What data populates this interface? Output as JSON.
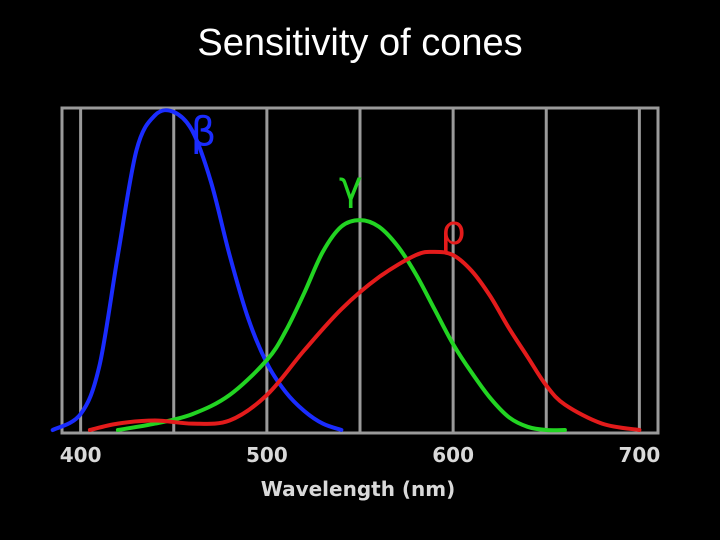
{
  "slide": {
    "title": "Sensitivity of cones"
  },
  "chart_data": {
    "type": "line",
    "title": "Sensitivity of cones",
    "xlabel": "Wavelength (nm)",
    "ylabel": "",
    "xlim": [
      390,
      710
    ],
    "ylim": [
      0,
      1.0
    ],
    "xticks": [
      400,
      500,
      600,
      700
    ],
    "vertical_gridlines": [
      400,
      450,
      500,
      550,
      600,
      650,
      700
    ],
    "grid": true,
    "legend": "none",
    "series": [
      {
        "name": "β",
        "color": "#1a2cff",
        "x": [
          385,
          400,
          410,
          420,
          430,
          440,
          450,
          460,
          470,
          480,
          490,
          500,
          510,
          520,
          530,
          540
        ],
        "y": [
          0.0,
          0.05,
          0.2,
          0.55,
          0.88,
          0.99,
          1.0,
          0.94,
          0.78,
          0.55,
          0.35,
          0.21,
          0.12,
          0.06,
          0.02,
          0.0
        ]
      },
      {
        "name": "γ",
        "color": "#22d422",
        "x": [
          420,
          440,
          460,
          480,
          500,
          510,
          520,
          530,
          540,
          550,
          560,
          570,
          580,
          590,
          600,
          610,
          620,
          630,
          640,
          650,
          660
        ],
        "y": [
          0.0,
          0.02,
          0.05,
          0.11,
          0.22,
          0.31,
          0.43,
          0.56,
          0.64,
          0.66,
          0.64,
          0.58,
          0.49,
          0.38,
          0.27,
          0.18,
          0.1,
          0.04,
          0.01,
          0.0,
          0.0
        ]
      },
      {
        "name": "ρ",
        "color": "#e31b1b",
        "x": [
          405,
          420,
          440,
          460,
          480,
          500,
          520,
          540,
          560,
          580,
          590,
          600,
          610,
          620,
          630,
          640,
          650,
          660,
          680,
          700
        ],
        "y": [
          0.0,
          0.02,
          0.03,
          0.02,
          0.03,
          0.11,
          0.25,
          0.38,
          0.48,
          0.55,
          0.56,
          0.55,
          0.5,
          0.42,
          0.32,
          0.23,
          0.14,
          0.08,
          0.02,
          0.0
        ]
      }
    ],
    "annotations": [
      {
        "text": "β",
        "x": 466,
        "y": 0.93,
        "color": "#1a2cff"
      },
      {
        "text": "γ",
        "x": 545,
        "y": 0.76,
        "color": "#22d422"
      },
      {
        "text": "ρ",
        "x": 600,
        "y": 0.62,
        "color": "#e31b1b"
      }
    ]
  }
}
